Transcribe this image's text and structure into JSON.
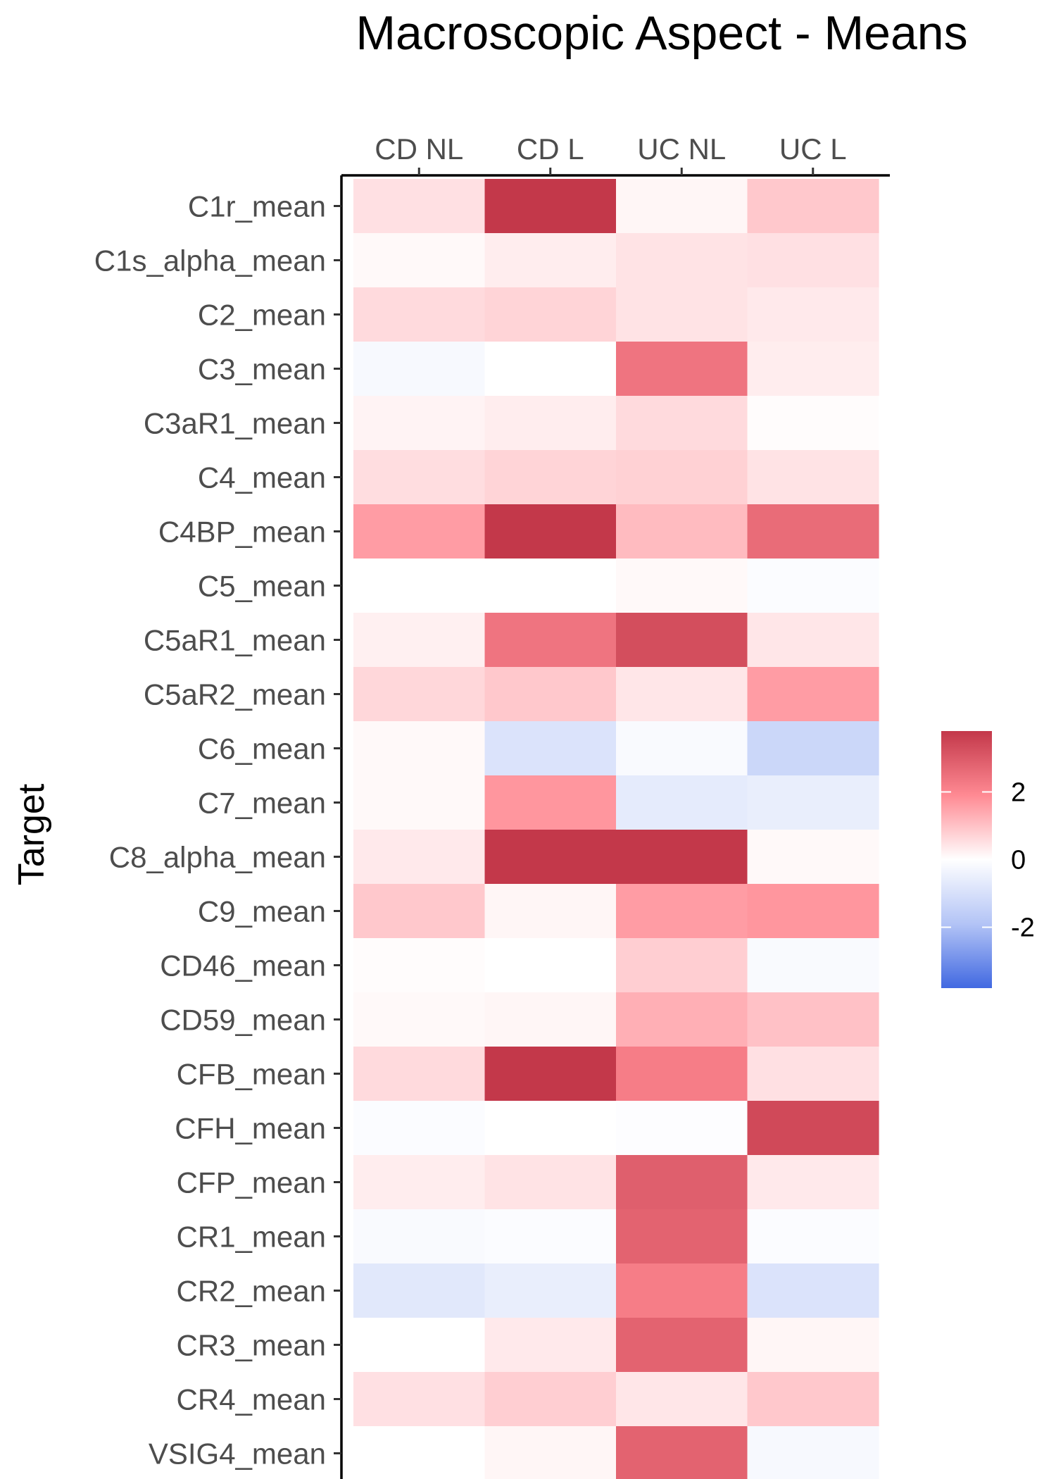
{
  "chart_data": {
    "type": "heatmap",
    "title": "Macroscopic Aspect - Means",
    "ylabel": "Target",
    "xlabel": "",
    "columns": [
      "CD NL",
      "CD L",
      "UC NL",
      "UC L"
    ],
    "rows": [
      "C1r_mean",
      "C1s_alpha_mean",
      "C2_mean",
      "C3_mean",
      "C3aR1_mean",
      "C4_mean",
      "C4BP_mean",
      "C5_mean",
      "C5aR1_mean",
      "C5aR2_mean",
      "C6_mean",
      "C7_mean",
      "C8_alpha_mean",
      "C9_mean",
      "CD46_mean",
      "CD59_mean",
      "CFB_mean",
      "CFH_mean",
      "CFP_mean",
      "CR1_mean",
      "CR2_mean",
      "CR3_mean",
      "CR4_mean",
      "VSIG4_mean"
    ],
    "values": [
      [
        0.5,
        3.8,
        0.15,
        0.9
      ],
      [
        0.1,
        0.3,
        0.45,
        0.5
      ],
      [
        0.6,
        0.7,
        0.45,
        0.35
      ],
      [
        -0.2,
        0.0,
        2.4,
        0.3
      ],
      [
        0.2,
        0.3,
        0.6,
        0.05
      ],
      [
        0.55,
        0.7,
        0.75,
        0.45
      ],
      [
        1.6,
        3.8,
        1.1,
        2.6
      ],
      [
        0.0,
        0.0,
        0.1,
        -0.1
      ],
      [
        0.25,
        2.4,
        3.3,
        0.4
      ],
      [
        0.65,
        0.9,
        0.4,
        1.6
      ],
      [
        0.1,
        -0.9,
        -0.15,
        -1.3
      ],
      [
        0.1,
        1.7,
        -0.65,
        -0.55
      ],
      [
        0.35,
        3.8,
        3.8,
        0.1
      ],
      [
        0.9,
        0.15,
        1.6,
        1.7
      ],
      [
        0.05,
        0.0,
        0.8,
        -0.15
      ],
      [
        0.1,
        0.15,
        1.3,
        1.0
      ],
      [
        0.6,
        3.8,
        2.2,
        0.5
      ],
      [
        -0.1,
        0.0,
        -0.05,
        3.4
      ],
      [
        0.3,
        0.45,
        2.9,
        0.35
      ],
      [
        -0.15,
        -0.1,
        2.8,
        -0.1
      ],
      [
        -0.75,
        -0.55,
        2.2,
        -0.9
      ],
      [
        0.0,
        0.35,
        2.8,
        0.15
      ],
      [
        0.5,
        0.8,
        0.4,
        0.9
      ],
      [
        0.0,
        0.15,
        2.8,
        -0.2
      ]
    ],
    "color_scale": {
      "low": "#4169e1",
      "mid": "#ffffff",
      "high": "#c3384a",
      "midpoint": 0,
      "limits": [
        -3.8,
        3.8
      ],
      "ticks": [
        2,
        0,
        -2
      ],
      "tick_labels": [
        "2",
        "0",
        "-2"
      ]
    },
    "legend_position": "right",
    "grid": false
  }
}
